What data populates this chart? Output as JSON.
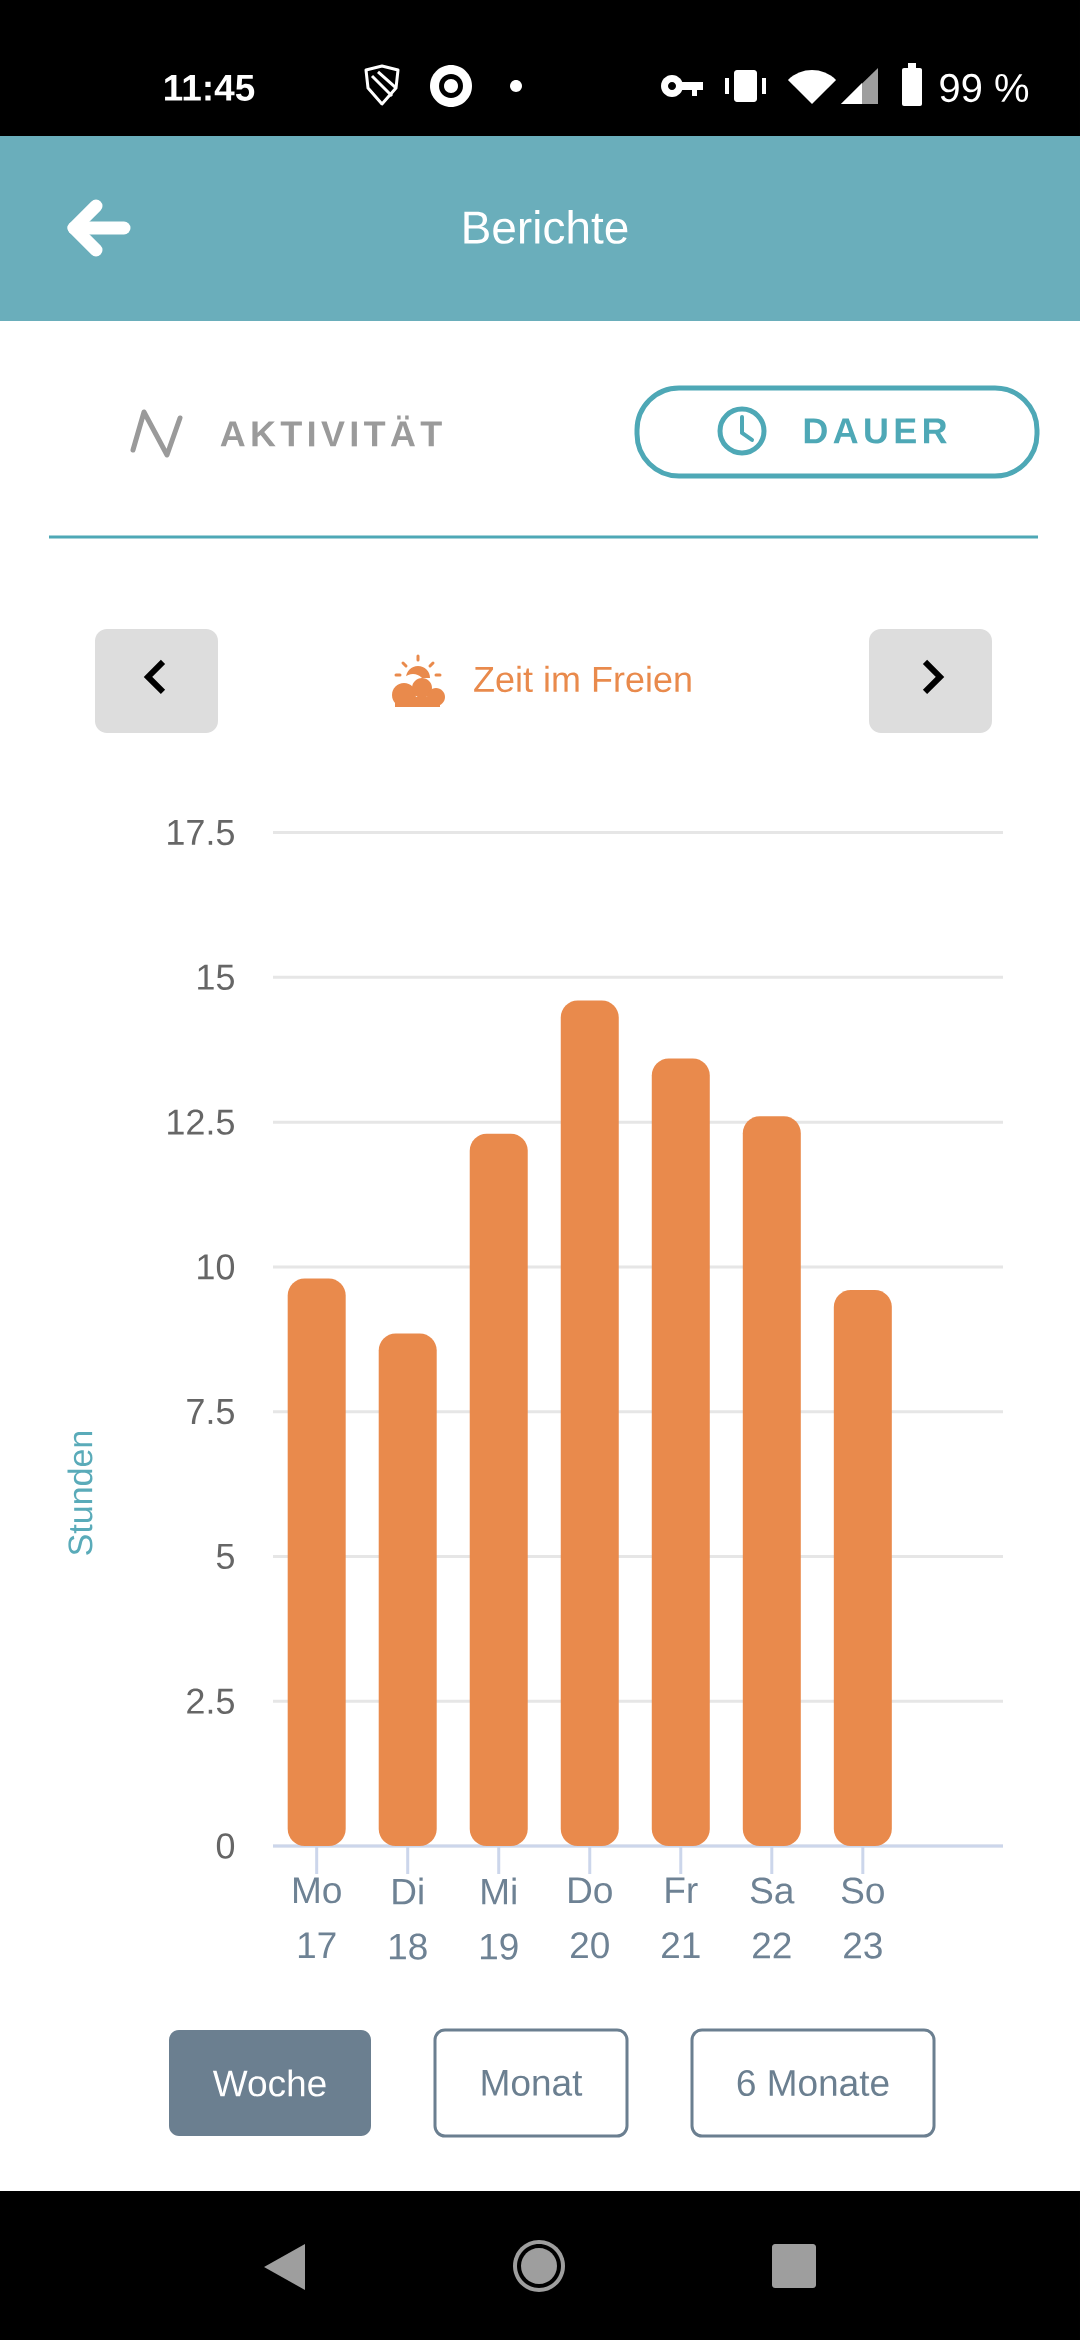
{
  "chart_data": {
    "type": "bar",
    "title": "Zeit im Freien",
    "ylabel": "Stunden",
    "categories": [
      "Mo 17",
      "Di 18",
      "Mi 19",
      "Do 20",
      "Fr 21",
      "Sa 22",
      "So 23"
    ],
    "values": [
      9.8,
      8.85,
      12.3,
      14.6,
      13.6,
      12.6,
      9.6
    ],
    "color": "#e98a4c",
    "ylim": [
      0,
      17.5
    ],
    "yticks": [
      0,
      2.5,
      5,
      7.5,
      10,
      12.5,
      15,
      17.5
    ],
    "grid": "y",
    "annotations": [
      "11:45",
      "99 %",
      "Berichte",
      "AKTIVITÄT",
      "DAUER",
      "Woche",
      "Monat",
      "6 Monate"
    ]
  }
}
